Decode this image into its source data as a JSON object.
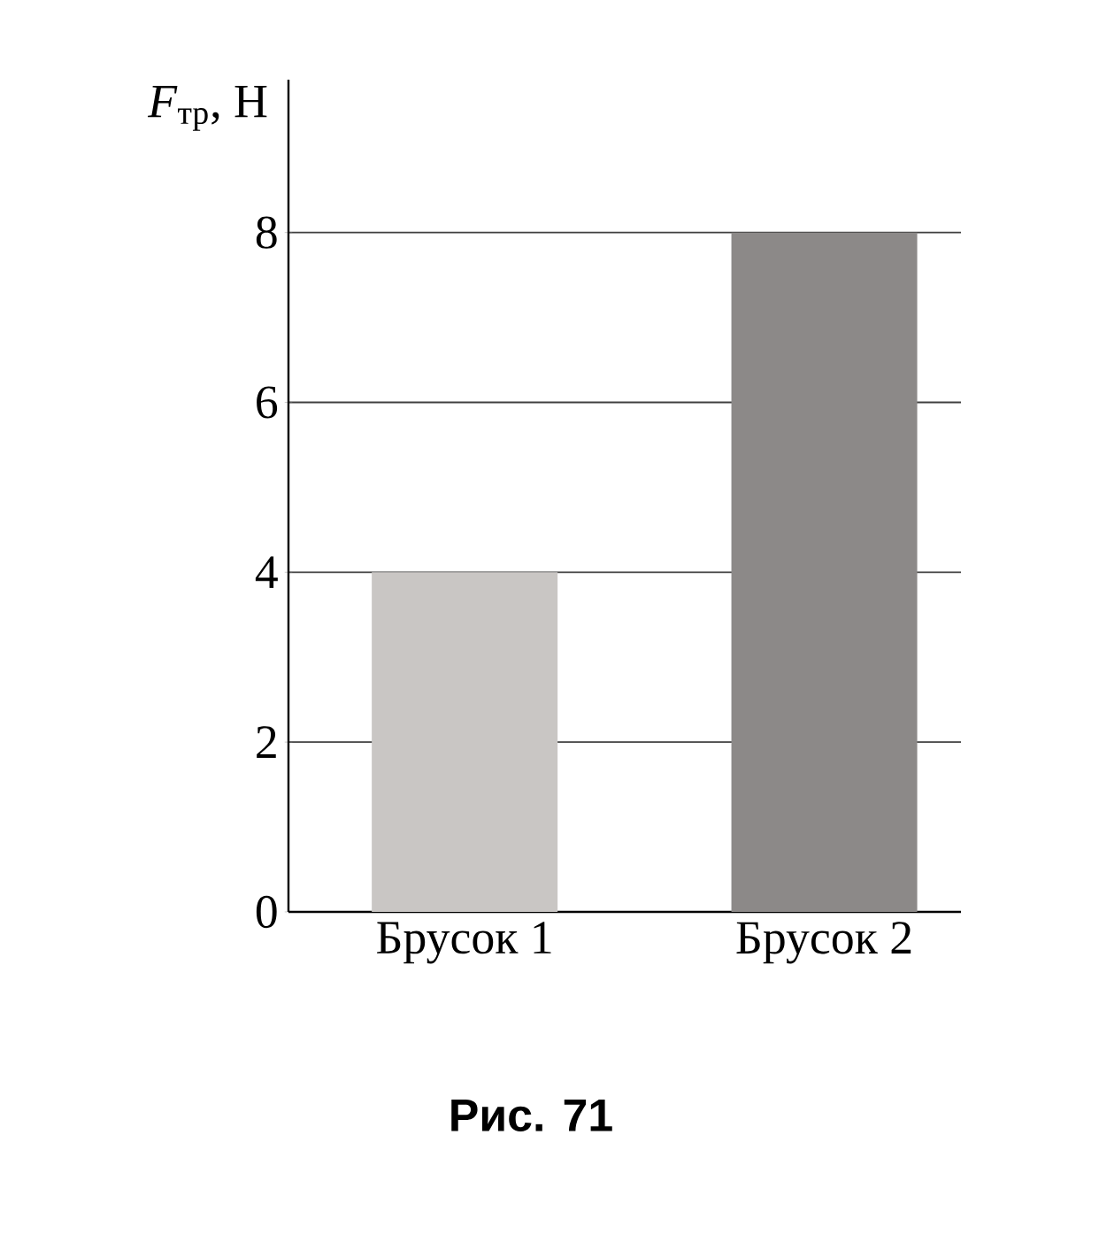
{
  "chart_data": {
    "type": "bar",
    "ylabel": "*F*$_{тр}$, Н",
    "categories": [
      "Брусок 1",
      "Брусок 2"
    ],
    "values": [
      4,
      8
    ],
    "colors": [
      "#c9c6c4",
      "#8c8988"
    ],
    "ylim": [
      0,
      9.8
    ],
    "yticks": [
      0,
      2,
      4,
      6,
      8
    ],
    "grid": "y",
    "annotations": [
      "**Рис. 71**"
    ]
  }
}
